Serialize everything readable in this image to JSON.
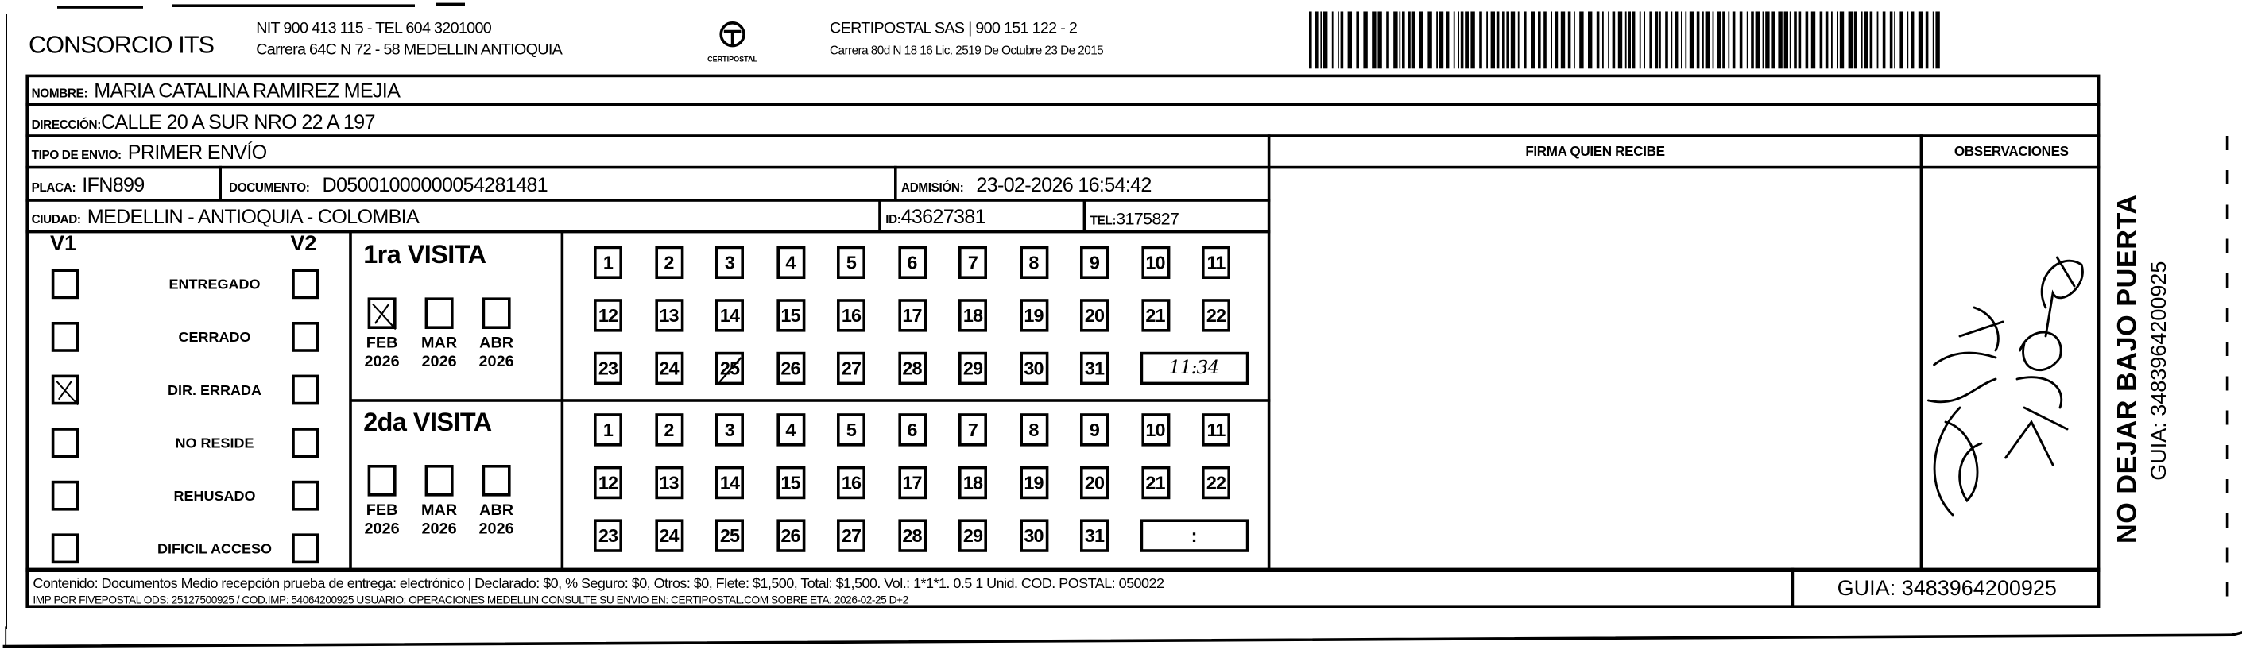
{
  "header": {
    "company": "CONSORCIO ITS",
    "company_line1": "NIT 900 413 115 - TEL 604 3201000",
    "company_line2": "Carrera 64C N 72 - 58 MEDELLIN ANTIOQUIA",
    "logo_text": "CERTIPOSTAL",
    "carrier_line1": "CERTIPOSTAL SAS | 900 151 122 - 2",
    "carrier_line2": "Carrera 80d N 18 16  Lic. 2519 De Octubre 23 De 2015"
  },
  "recipient": {
    "nombre_label": "NOMBRE:",
    "nombre": "MARIA CATALINA RAMIREZ MEJIA",
    "direccion_label": "DIRECCIÓN:",
    "direccion": "CALLE 20 A SUR NRO 22 A 197",
    "tipo_label": "TIPO DE ENVIO:",
    "tipo": "PRIMER ENVÍO",
    "placa_label": "PLACA:",
    "placa": "IFN899",
    "documento_label": "DOCUMENTO:",
    "documento": "D05001000000054281481",
    "admision_label": "ADMISIÓN:",
    "admision": "23-02-2026 16:54:42",
    "ciudad_label": "CIUDAD:",
    "ciudad": "MEDELLIN - ANTIOQUIA - COLOMBIA",
    "id_label": "ID:",
    "id": "43627381",
    "tel_label": "TEL:",
    "tel": "3175827"
  },
  "firma_header": "FIRMA QUIEN RECIBE",
  "observaciones_header": "OBSERVACIONES",
  "status": {
    "v1_label": "V1",
    "v2_label": "V2",
    "items": [
      {
        "label": "ENTREGADO",
        "v1": false,
        "v2": false
      },
      {
        "label": "CERRADO",
        "v1": false,
        "v2": false
      },
      {
        "label": "DIR. ERRADA",
        "v1": true,
        "v2": false
      },
      {
        "label": "NO RESIDE",
        "v1": false,
        "v2": false
      },
      {
        "label": "REHUSADO",
        "v1": false,
        "v2": false
      },
      {
        "label": "DIFICIL ACCESO",
        "v1": false,
        "v2": false
      }
    ]
  },
  "visits": [
    {
      "title": "1ra VISITA",
      "months": [
        {
          "m": "FEB",
          "y": "2026",
          "checked": true
        },
        {
          "m": "MAR",
          "y": "2026",
          "checked": false
        },
        {
          "m": "ABR",
          "y": "2026",
          "checked": false
        }
      ],
      "marked_day": 25,
      "time": "11:34"
    },
    {
      "title": "2da VISITA",
      "months": [
        {
          "m": "FEB",
          "y": "2026",
          "checked": false
        },
        {
          "m": "MAR",
          "y": "2026",
          "checked": false
        },
        {
          "m": "ABR",
          "y": "2026",
          "checked": false
        }
      ],
      "marked_day": null,
      "time": ":"
    }
  ],
  "days": [
    1,
    2,
    3,
    4,
    5,
    6,
    7,
    8,
    9,
    10,
    11,
    12,
    13,
    14,
    15,
    16,
    17,
    18,
    19,
    20,
    21,
    22,
    23,
    24,
    25,
    26,
    27,
    28,
    29,
    30,
    31
  ],
  "footer": {
    "line1": "Contenido: Documentos Medio recepción prueba de entrega: electrónico | Declarado: $0, % Seguro: $0, Otros: $0, Flete: $1,500, Total: $1,500. Vol.: 1*1*1. 0.5  1 Unid. COD. POSTAL: 050022",
    "line2": "IMP POR FIVEPOSTAL ODS: 25127500925 / COD.IMP: 54064200925 USUARIO: OPERACIONES MEDELLIN CONSULTE SU ENVIO EN: CERTIPOSTAL.COM SOBRE ETA: 2026-02-25 D+2",
    "guia": "GUIA: 3483964200925"
  },
  "side": {
    "warning": "NO DEJAR BAJO PUERTA",
    "guia": "GUIA: 3483964200925"
  }
}
